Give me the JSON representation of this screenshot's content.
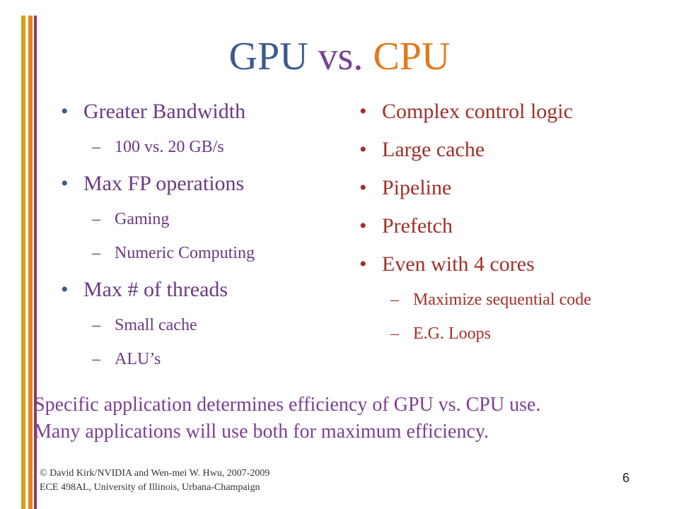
{
  "title": {
    "part1": "GPU",
    "part2": " vs. ",
    "part3": "CPU"
  },
  "left": {
    "items": [
      {
        "label": "Greater Bandwidth",
        "subs": [
          "100 vs. 20 GB/s"
        ]
      },
      {
        "label": "Max FP operations",
        "subs": [
          "Gaming",
          "Numeric Computing"
        ]
      },
      {
        "label": "Max # of threads",
        "subs": [
          "Small cache",
          "ALU’s"
        ]
      }
    ]
  },
  "right": {
    "items": [
      {
        "label": "Complex control logic",
        "subs": []
      },
      {
        "label": "Large cache",
        "subs": []
      },
      {
        "label": "Pipeline",
        "subs": []
      },
      {
        "label": "Prefetch",
        "subs": []
      },
      {
        "label": "Even with 4 cores",
        "subs": [
          "Maximize sequential code",
          "E.G. Loops"
        ]
      }
    ]
  },
  "bottom": {
    "line1": "Specific application determines efficiency of GPU vs. CPU use.",
    "line2": "Many applications will use both for maximum efficiency."
  },
  "footer": {
    "line1": "© David Kirk/NVIDIA and Wen-mei W. Hwu, 2007-2009",
    "line2": "ECE 498AL, University of Illinois, Urbana-Champaign",
    "page": "6"
  },
  "colors": {
    "gpu": "#3b5a8f",
    "vs": "#7b3f93",
    "cpu": "#e07a1a",
    "left_text": "#6a3a80",
    "right_text": "#a0302a"
  }
}
